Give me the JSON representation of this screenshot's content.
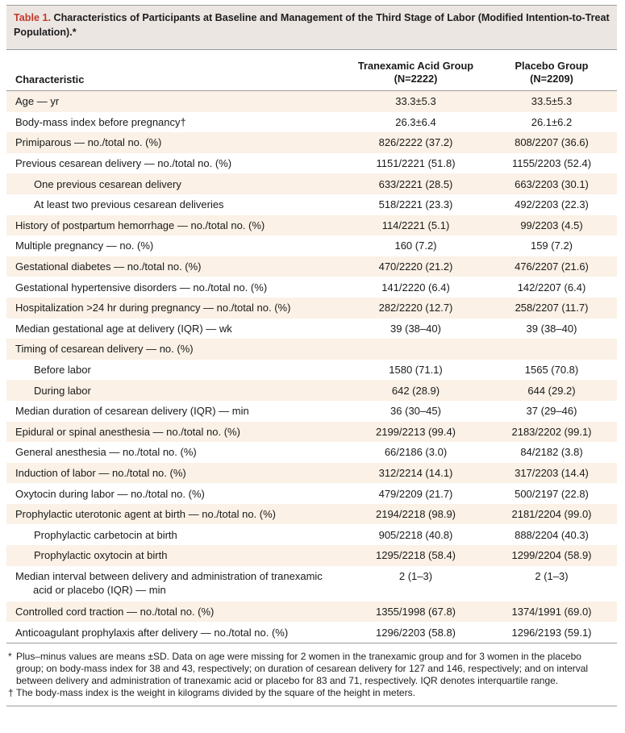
{
  "caption": {
    "label": "Table 1.",
    "title": "Characteristics of Participants at Baseline and Management of the Third Stage of Labor (Modified Intention-to-Treat Population).*"
  },
  "header": {
    "characteristic": "Characteristic",
    "tx_line1": "Tranexamic Acid Group",
    "tx_line2": "(N=2222)",
    "pl_line1": "Placebo Group",
    "pl_line2": "(N=2209)"
  },
  "rows": [
    {
      "label": "Age — yr",
      "tx": "33.3±5.3",
      "pl": "33.5±5.3"
    },
    {
      "label": "Body-mass index before pregnancy†",
      "tx": "26.3±6.4",
      "pl": "26.1±6.2"
    },
    {
      "label": "Primiparous — no./total no. (%)",
      "tx": "826/2222 (37.2)",
      "pl": "808/2207 (36.6)"
    },
    {
      "label": "Previous cesarean delivery — no./total no. (%)",
      "tx": "1151/2221 (51.8)",
      "pl": "1155/2203 (52.4)"
    },
    {
      "label": "One previous cesarean delivery",
      "tx": "633/2221 (28.5)",
      "pl": "663/2203 (30.1)"
    },
    {
      "label": "At least two previous cesarean deliveries",
      "tx": "518/2221 (23.3)",
      "pl": "492/2203 (22.3)"
    },
    {
      "label": "History of postpartum hemorrhage — no./total no. (%)",
      "tx": "114/2221 (5.1)",
      "pl": "99/2203 (4.5)"
    },
    {
      "label": "Multiple pregnancy — no. (%)",
      "tx": "160 (7.2)",
      "pl": "159 (7.2)"
    },
    {
      "label": "Gestational diabetes — no./total no. (%)",
      "tx": "470/2220 (21.2)",
      "pl": "476/2207 (21.6)"
    },
    {
      "label": "Gestational hypertensive disorders — no./total no. (%)",
      "tx": "141/2220 (6.4)",
      "pl": "142/2207 (6.4)"
    },
    {
      "label": "Hospitalization >24 hr during pregnancy — no./total no. (%)",
      "tx": "282/2220 (12.7)",
      "pl": "258/2207 (11.7)"
    },
    {
      "label": "Median gestational age at delivery (IQR) — wk",
      "tx": "39 (38–40)",
      "pl": "39 (38–40)"
    },
    {
      "label": "Timing of cesarean delivery — no. (%)",
      "tx": "",
      "pl": ""
    },
    {
      "label": "Before labor",
      "tx": "1580 (71.1)",
      "pl": "1565 (70.8)"
    },
    {
      "label": "During labor",
      "tx": "642 (28.9)",
      "pl": "644 (29.2)"
    },
    {
      "label": "Median duration of cesarean delivery (IQR) — min",
      "tx": "36 (30–45)",
      "pl": "37 (29–46)"
    },
    {
      "label": "Epidural or spinal anesthesia — no./total no. (%)",
      "tx": "2199/2213 (99.4)",
      "pl": "2183/2202 (99.1)"
    },
    {
      "label": "General anesthesia — no./total no. (%)",
      "tx": "66/2186 (3.0)",
      "pl": "84/2182 (3.8)"
    },
    {
      "label": "Induction of labor — no./total no. (%)",
      "tx": "312/2214 (14.1)",
      "pl": "317/2203 (14.4)"
    },
    {
      "label": "Oxytocin during labor — no./total no. (%)",
      "tx": "479/2209 (21.7)",
      "pl": "500/2197 (22.8)"
    },
    {
      "label": "Prophylactic uterotonic agent at birth — no./total no. (%)",
      "tx": "2194/2218 (98.9)",
      "pl": "2181/2204 (99.0)"
    },
    {
      "label": "Prophylactic carbetocin at birth",
      "tx": "905/2218 (40.8)",
      "pl": "888/2204 (40.3)"
    },
    {
      "label": "Prophylactic oxytocin at birth",
      "tx": "1295/2218 (58.4)",
      "pl": "1299/2204 (58.9)"
    },
    {
      "label": "Median interval between delivery and administration of tranexamic",
      "label_cont": "acid or placebo (IQR) — min",
      "tx": "2 (1–3)",
      "pl": "2 (1–3)"
    },
    {
      "label": "Controlled cord traction — no./total no. (%)",
      "tx": "1355/1998 (67.8)",
      "pl": "1374/1991 (69.0)"
    },
    {
      "label": "Anticoagulant prophylaxis after delivery — no./total no. (%)",
      "tx": "1296/2203 (58.8)",
      "pl": "1296/2193 (59.1)"
    }
  ],
  "footnotes": [
    {
      "mark": "*",
      "text": "Plus–minus values are means ±SD. Data on age were missing for 2 women in the tranexamic group and for 3 women in the placebo group; on body-mass index for 38 and 43, respectively; on duration of cesarean delivery for 127 and 146, respectively; and on interval between delivery and administration of tranexamic acid or placebo for 83 and 71, respectively. IQR denotes interquartile range."
    },
    {
      "mark": "†",
      "text": "The body-mass index is the weight in kilograms divided by the square of the height in meters."
    }
  ]
}
